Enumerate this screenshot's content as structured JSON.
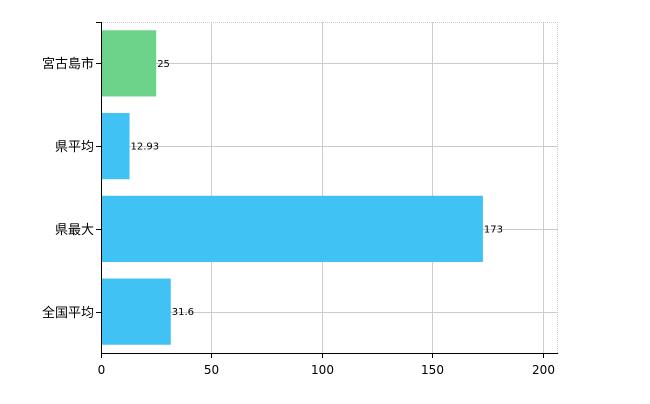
{
  "chart_data": {
    "type": "bar",
    "orientation": "horizontal",
    "categories": [
      "宮古島市",
      "県平均",
      "県最大",
      "全国平均"
    ],
    "values": [
      25,
      12.93,
      173,
      31.6
    ],
    "data_labels": [
      "25",
      "12.93",
      "173",
      "31.6"
    ],
    "bar_colors": [
      "#6dd38a",
      "#40c2f5",
      "#40c2f5",
      "#40c2f5"
    ],
    "xlim": [
      0,
      207
    ],
    "x_ticks": [
      0,
      50,
      100,
      150,
      200
    ],
    "x_tick_labels": [
      "0",
      "50",
      "100",
      "150",
      "200"
    ],
    "grid": true,
    "grid_style": "dotted",
    "colors": {
      "axis": "#000000",
      "grid": "#cccccc",
      "text": "#000000"
    }
  }
}
